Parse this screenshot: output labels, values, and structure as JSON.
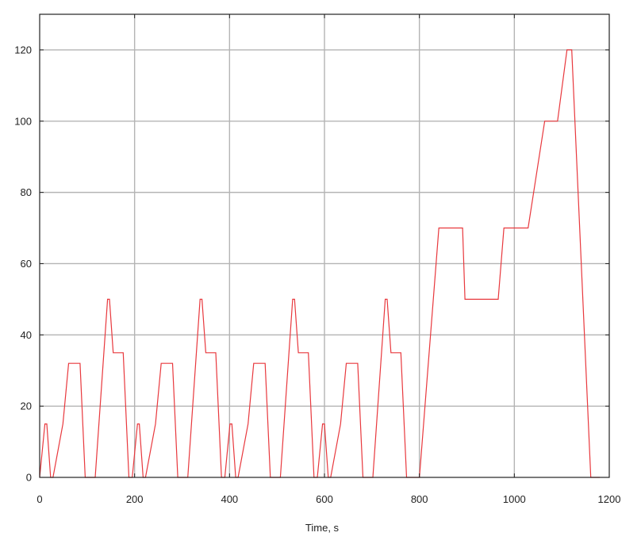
{
  "chart_data": {
    "type": "line",
    "title": "",
    "xlabel": "Time, s",
    "ylabel": "",
    "xlim": [
      0,
      1200
    ],
    "ylim": [
      0,
      130
    ],
    "xticks": [
      0,
      200,
      400,
      600,
      800,
      1000,
      1200
    ],
    "yticks": [
      0,
      20,
      40,
      60,
      80,
      100,
      120
    ],
    "xtick_labels": [
      "0",
      "200",
      "400",
      "600",
      "800",
      "1000",
      "1200"
    ],
    "ytick_labels": [
      "0",
      "20",
      "40",
      "60",
      "80",
      "100",
      "120"
    ],
    "grid": true,
    "series": [
      {
        "color": "#e8383d",
        "x": [
          0,
          11,
          15,
          23,
          28,
          49,
          61,
          69,
          85,
          96,
          117,
          143,
          147,
          155,
          163,
          169,
          176,
          188,
          195,
          206,
          210,
          218,
          223,
          244,
          256,
          264,
          280,
          291,
          312,
          338,
          342,
          350,
          358,
          364,
          371,
          383,
          390,
          401,
          405,
          413,
          418,
          439,
          451,
          459,
          475,
          486,
          507,
          533,
          537,
          545,
          553,
          559,
          566,
          578,
          585,
          596,
          600,
          608,
          613,
          634,
          646,
          654,
          670,
          681,
          702,
          728,
          732,
          740,
          748,
          754,
          761,
          773,
          780,
          800,
          841,
          891,
          896,
          966,
          978,
          1029,
          1064,
          1091,
          1111,
          1121,
          1161,
          1180
        ],
        "y": [
          0,
          15,
          15,
          0,
          0,
          15,
          32,
          32,
          32,
          0,
          0,
          50,
          50,
          35,
          35,
          35,
          35,
          0,
          0,
          15,
          15,
          0,
          0,
          15,
          32,
          32,
          32,
          0,
          0,
          50,
          50,
          35,
          35,
          35,
          35,
          0,
          0,
          15,
          15,
          0,
          0,
          15,
          32,
          32,
          32,
          0,
          0,
          50,
          50,
          35,
          35,
          35,
          35,
          0,
          0,
          15,
          15,
          0,
          0,
          15,
          32,
          32,
          32,
          0,
          0,
          50,
          50,
          35,
          35,
          35,
          35,
          0,
          0,
          0,
          70,
          70,
          50,
          50,
          70,
          70,
          100,
          100,
          120,
          120,
          0,
          0
        ]
      }
    ]
  }
}
